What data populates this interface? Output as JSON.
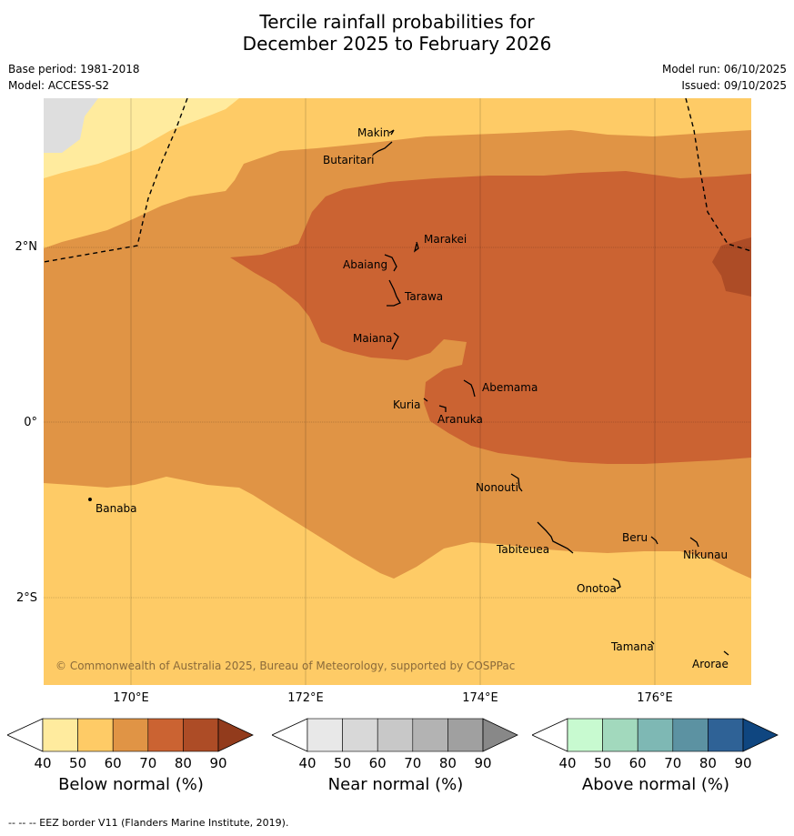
{
  "title": {
    "line1": "Tercile rainfall probabilities for",
    "line2": "December 2025 to February 2026"
  },
  "meta": {
    "base_period": "Base period: 1981-2018",
    "model": "Model: ACCESS-S2",
    "model_run": "Model run: 06/10/2025",
    "issued": "Issued: 09/10/2025"
  },
  "map": {
    "copyright": "© Commonwealth of Australia 2025, Bureau of Meteorology, supported by COSPPac",
    "lat_labels": [
      "2°N",
      "0°",
      "2°S"
    ],
    "lon_labels": [
      "170°E",
      "172°E",
      "174°E",
      "176°E"
    ],
    "places": {
      "makin": "Makin",
      "butaritari": "Butaritari",
      "marakei": "Marakei",
      "abaiang": "Abaiang",
      "tarawa": "Tarawa",
      "maiana": "Maiana",
      "abemama": "Abemama",
      "kuria": "Kuria",
      "aranuka": "Aranuka",
      "banaba": "Banaba",
      "nonouti": "Nonouti",
      "tabiteuea": "Tabiteuea",
      "beru": "Beru",
      "nikunau": "Nikunau",
      "onotoa": "Onotoa",
      "tamana": "Tamana",
      "arorae": "Arorae"
    },
    "colors": {
      "below_50": "#ffeb9e",
      "below_60": "#fecb66",
      "below_70": "#e09445",
      "below_80": "#cb6332",
      "below_90": "#ad4c26",
      "near_50": "#dedede"
    }
  },
  "colorbars": [
    {
      "title": "Below normal (%)",
      "ticks": [
        "40",
        "50",
        "60",
        "70",
        "80",
        "90"
      ],
      "colors": [
        "#ffffff",
        "#ffeb9e",
        "#fecb66",
        "#e09445",
        "#cb6332",
        "#ad4c26",
        "#923b1c"
      ]
    },
    {
      "title": "Near normal (%)",
      "ticks": [
        "40",
        "50",
        "60",
        "70",
        "80",
        "90"
      ],
      "colors": [
        "#ffffff",
        "#e8e8e8",
        "#d8d8d8",
        "#c8c8c8",
        "#b3b3b3",
        "#a0a0a0",
        "#888888"
      ]
    },
    {
      "title": "Above normal (%)",
      "ticks": [
        "40",
        "50",
        "60",
        "70",
        "80",
        "90"
      ],
      "colors": [
        "#ffffff",
        "#c8fad0",
        "#a2d9bd",
        "#7eb8b4",
        "#5c92a2",
        "#2f6296",
        "#0f4680"
      ]
    }
  ],
  "footer": "--  --  -- EEZ border V11 (Flanders Marine Institute, 2019)."
}
